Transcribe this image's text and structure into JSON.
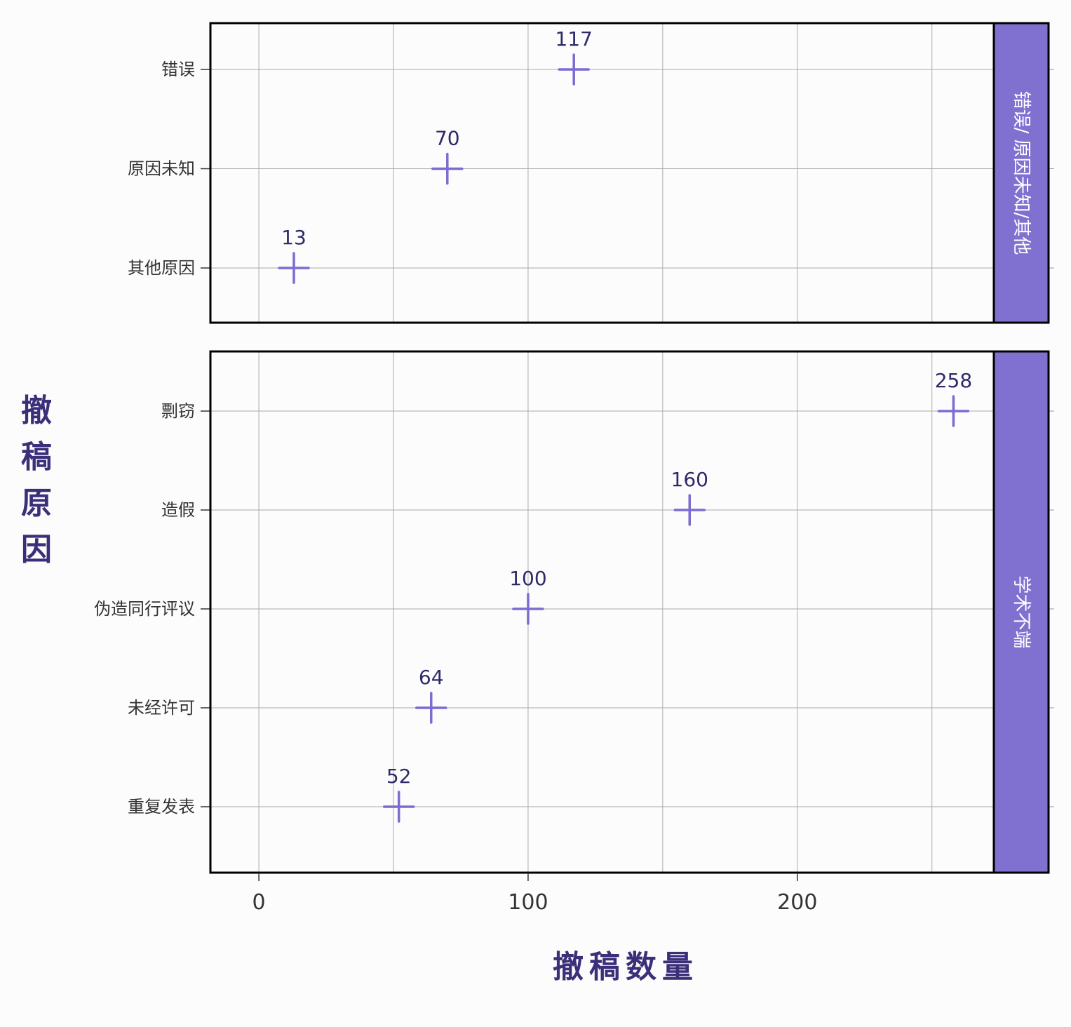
{
  "chart_data": {
    "type": "scatter",
    "xlabel": "撤稿数量",
    "ylabel": "撤稿原因",
    "xlim": [
      -18,
      273
    ],
    "xticks": [
      0,
      100,
      200
    ],
    "grid": true,
    "marker": "plus",
    "colors": {
      "marker": "#7b6cd2",
      "strip": "#8070d0",
      "label": "#2e2a6a",
      "title": "#3b2f7a",
      "grid": "#aaaaaa",
      "frame": "#000000"
    },
    "panels": [
      {
        "strip": "错误/ 原因未知/其他",
        "categories": [
          "错误",
          "原因未知",
          "其他原因"
        ],
        "points": [
          {
            "category": "错误",
            "value": 117,
            "label": "117"
          },
          {
            "category": "原因未知",
            "value": 70,
            "label": "70"
          },
          {
            "category": "其他原因",
            "value": 13,
            "label": "13"
          }
        ]
      },
      {
        "strip": "学术不端",
        "categories": [
          "剽窃",
          "造假",
          "伪造同行评议",
          "未经许可",
          "重复发表"
        ],
        "points": [
          {
            "category": "剽窃",
            "value": 258,
            "label": "258"
          },
          {
            "category": "造假",
            "value": 160,
            "label": "160"
          },
          {
            "category": "伪造同行评议",
            "value": 100,
            "label": "100"
          },
          {
            "category": "未经许可",
            "value": 64,
            "label": "64"
          },
          {
            "category": "重复发表",
            "value": 52,
            "label": "52"
          }
        ]
      }
    ]
  }
}
